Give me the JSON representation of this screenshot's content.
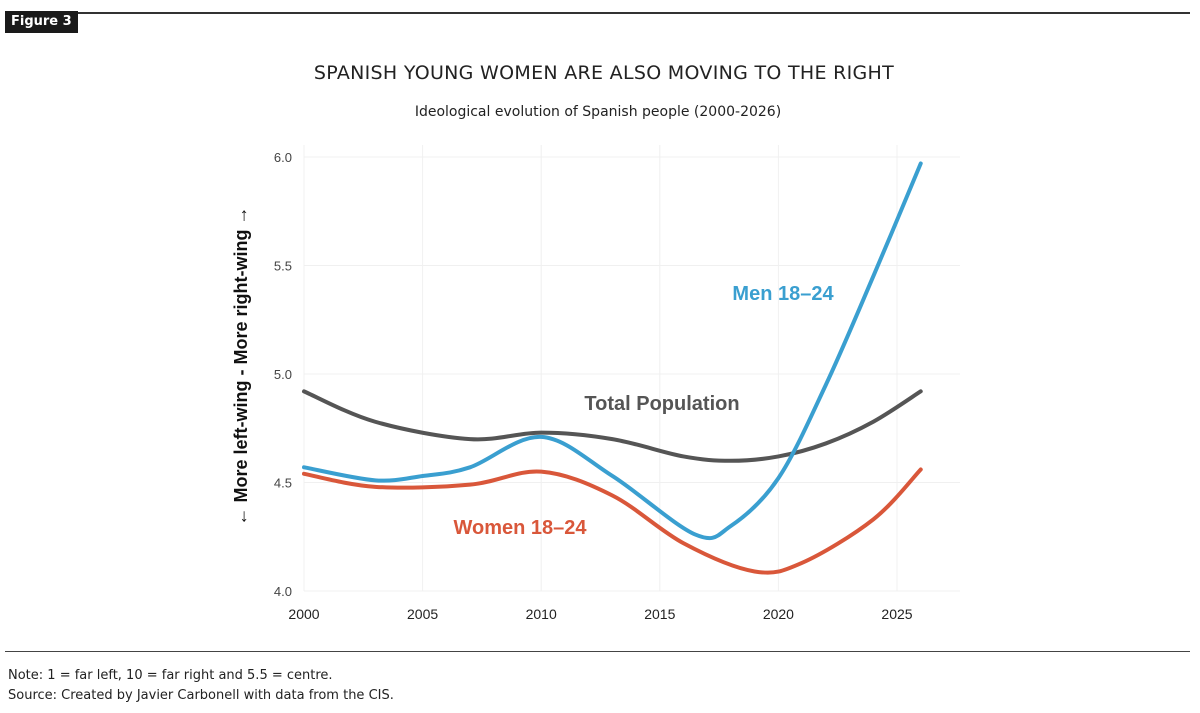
{
  "figure_label": "Figure 3",
  "chart_data": {
    "type": "line",
    "title": "SPANISH YOUNG WOMEN ARE ALSO MOVING TO THE RIGHT",
    "subtitle": "Ideological evolution of Spanish people (2000-2026)",
    "ylabel": "← More left-wing - More right-wing →",
    "xlabel": "",
    "xlim": [
      2000,
      2026
    ],
    "ylim": [
      4.0,
      6.0
    ],
    "xticks": [
      "2000",
      "2005",
      "2010",
      "2015",
      "2020",
      "2025"
    ],
    "yticks": [
      "4.0",
      "4.5",
      "5.0",
      "5.5",
      "6.0"
    ],
    "grid": true,
    "series": [
      {
        "name": "Total Population",
        "color": "#555555",
        "x": [
          2000,
          2003,
          2007,
          2010,
          2013,
          2016,
          2018,
          2020,
          2022,
          2024,
          2026
        ],
        "y": [
          4.92,
          4.78,
          4.7,
          4.73,
          4.7,
          4.62,
          4.6,
          4.62,
          4.68,
          4.78,
          4.92
        ]
      },
      {
        "name": "Men 18–24",
        "color": "#3a9fd0",
        "x": [
          2000,
          2003,
          2005,
          2007,
          2010,
          2013,
          2016.5,
          2018,
          2020,
          2022,
          2024,
          2026
        ],
        "y": [
          4.57,
          4.51,
          4.53,
          4.57,
          4.71,
          4.53,
          4.26,
          4.3,
          4.52,
          4.95,
          5.45,
          5.97
        ]
      },
      {
        "name": "Women 18–24",
        "color": "#d9573a",
        "x": [
          2000,
          2003,
          2007,
          2010,
          2013,
          2016,
          2019,
          2021,
          2024,
          2026
        ],
        "y": [
          4.54,
          4.48,
          4.49,
          4.55,
          4.44,
          4.22,
          4.09,
          4.13,
          4.33,
          4.56
        ]
      }
    ]
  },
  "note": "Note: 1 = far left, 10 = far right and 5.5 = centre.",
  "source": "Source: Created by Javier Carbonell with data from the CIS."
}
